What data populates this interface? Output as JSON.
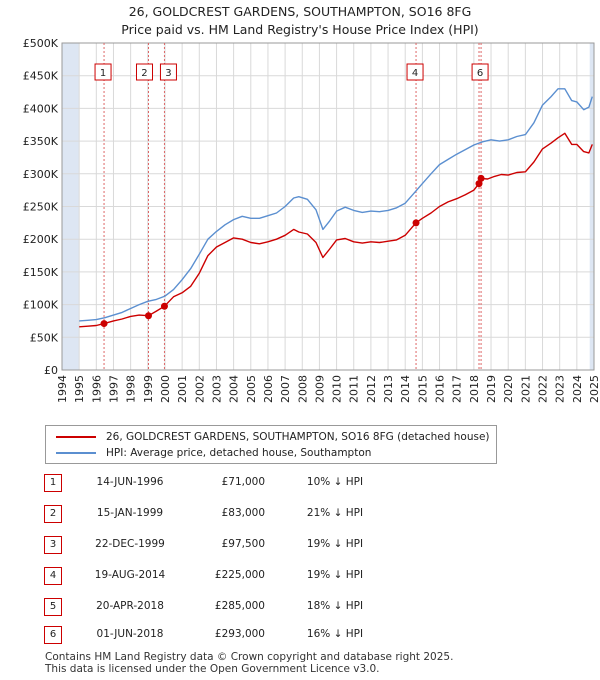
{
  "title_line1": "26, GOLDCREST GARDENS, SOUTHAMPTON, SO16 8FG",
  "title_line2": "Price paid vs. HM Land Registry's House Price Index (HPI)",
  "legend": {
    "property_label": "26, GOLDCREST GARDENS, SOUTHAMPTON, SO16 8FG (detached house)",
    "hpi_label": "HPI: Average price, detached house, Southampton"
  },
  "colors": {
    "property": "#cc0000",
    "hpi": "#5b8fd0",
    "shade": "#dde6f3",
    "marker_line": "#dd6666"
  },
  "transactions": [
    {
      "num": "1",
      "date": "14-JUN-1996",
      "price": "£71,000",
      "hpi": "10% ↓ HPI"
    },
    {
      "num": "2",
      "date": "15-JAN-1999",
      "price": "£83,000",
      "hpi": "21% ↓ HPI"
    },
    {
      "num": "3",
      "date": "22-DEC-1999",
      "price": "£97,500",
      "hpi": "19% ↓ HPI"
    },
    {
      "num": "4",
      "date": "19-AUG-2014",
      "price": "£225,000",
      "hpi": "19% ↓ HPI"
    },
    {
      "num": "5",
      "date": "20-APR-2018",
      "price": "£285,000",
      "hpi": "18% ↓ HPI"
    },
    {
      "num": "6",
      "date": "01-JUN-2018",
      "price": "£293,000",
      "hpi": "16% ↓ HPI"
    }
  ],
  "footer_line1": "Contains HM Land Registry data © Crown copyright and database right 2025.",
  "footer_line2": "This data is licensed under the Open Government Licence v3.0.",
  "chart_data": {
    "type": "line",
    "title": "26, GOLDCREST GARDENS, SOUTHAMPTON, SO16 8FG",
    "subtitle": "Price paid vs. HM Land Registry's House Price Index (HPI)",
    "xlim": [
      1994,
      2025
    ],
    "ylim": [
      0,
      500000
    ],
    "x_ticks": [
      1994,
      1995,
      1996,
      1997,
      1998,
      1999,
      2000,
      2001,
      2002,
      2003,
      2004,
      2005,
      2006,
      2007,
      2008,
      2009,
      2010,
      2011,
      2012,
      2013,
      2014,
      2015,
      2016,
      2017,
      2018,
      2019,
      2020,
      2021,
      2022,
      2023,
      2024,
      2025
    ],
    "y_ticks": [
      0,
      50000,
      100000,
      150000,
      200000,
      250000,
      300000,
      350000,
      400000,
      450000,
      500000
    ],
    "y_tick_labels": [
      "£0",
      "£50K",
      "£100K",
      "£150K",
      "£200K",
      "£250K",
      "£300K",
      "£350K",
      "£400K",
      "£450K",
      "£500K"
    ],
    "grid": true,
    "shaded_ranges": [
      [
        1994,
        1995
      ],
      [
        2024.75,
        2025
      ]
    ],
    "sale_markers": [
      {
        "label": "1",
        "x": 1996.45,
        "y": 71000
      },
      {
        "label": "2",
        "x": 1999.04,
        "y": 83000
      },
      {
        "label": "3",
        "x": 1999.97,
        "y": 97500
      },
      {
        "label": "4",
        "x": 2014.63,
        "y": 225000
      },
      {
        "label": "5",
        "x": 2018.3,
        "y": 285000
      },
      {
        "label": "6",
        "x": 2018.42,
        "y": 293000
      }
    ],
    "series": [
      {
        "name": "26, GOLDCREST GARDENS, SOUTHAMPTON, SO16 8FG (detached house)",
        "x": [
          1995.0,
          1995.5,
          1996.0,
          1996.45,
          1997.0,
          1997.5,
          1998.0,
          1998.5,
          1999.04,
          1999.5,
          1999.97,
          2000.5,
          2001.0,
          2001.5,
          2002.0,
          2002.5,
          2003.0,
          2003.5,
          2004.0,
          2004.5,
          2005.0,
          2005.5,
          2006.0,
          2006.5,
          2007.0,
          2007.5,
          2007.8,
          2008.3,
          2008.8,
          2009.2,
          2009.6,
          2010.0,
          2010.5,
          2011.0,
          2011.5,
          2012.0,
          2012.5,
          2013.0,
          2013.5,
          2014.0,
          2014.63,
          2015.0,
          2015.5,
          2016.0,
          2016.5,
          2017.0,
          2017.5,
          2018.0,
          2018.3,
          2018.42,
          2018.8,
          2019.2,
          2019.6,
          2020.0,
          2020.5,
          2021.0,
          2021.5,
          2022.0,
          2022.5,
          2022.9,
          2023.3,
          2023.7,
          2024.0,
          2024.4,
          2024.7,
          2024.9
        ],
        "y": [
          66000,
          67000,
          68000,
          71000,
          75000,
          78000,
          82000,
          84000,
          83000,
          90000,
          97500,
          112000,
          118000,
          128000,
          148000,
          175000,
          188000,
          195000,
          202000,
          200000,
          195000,
          193000,
          196000,
          200000,
          206000,
          215000,
          211000,
          208000,
          195000,
          172000,
          185000,
          199000,
          201000,
          196000,
          194000,
          196000,
          195000,
          197000,
          199000,
          206000,
          225000,
          232000,
          240000,
          250000,
          257000,
          262000,
          268000,
          275000,
          285000,
          293000,
          292000,
          296000,
          299000,
          298000,
          302000,
          303000,
          318000,
          338000,
          347000,
          355000,
          362000,
          345000,
          345000,
          334000,
          332000,
          345000
        ]
      },
      {
        "name": "HPI: Average price, detached house, Southampton",
        "x": [
          1995.0,
          1995.5,
          1996.0,
          1996.5,
          1997.0,
          1997.5,
          1998.0,
          1998.5,
          1999.0,
          1999.5,
          2000.0,
          2000.5,
          2001.0,
          2001.5,
          2002.0,
          2002.5,
          2003.0,
          2003.5,
          2004.0,
          2004.5,
          2005.0,
          2005.5,
          2006.0,
          2006.5,
          2007.0,
          2007.5,
          2007.8,
          2008.3,
          2008.8,
          2009.2,
          2009.6,
          2010.0,
          2010.5,
          2011.0,
          2011.5,
          2012.0,
          2012.5,
          2013.0,
          2013.5,
          2014.0,
          2014.5,
          2015.0,
          2015.5,
          2016.0,
          2016.5,
          2017.0,
          2017.5,
          2018.0,
          2018.5,
          2019.0,
          2019.5,
          2020.0,
          2020.5,
          2021.0,
          2021.5,
          2022.0,
          2022.5,
          2022.9,
          2023.3,
          2023.7,
          2024.0,
          2024.4,
          2024.7,
          2024.9
        ],
        "y": [
          75000,
          76000,
          77000,
          80000,
          84000,
          88000,
          94000,
          100000,
          105000,
          108000,
          113000,
          123000,
          138000,
          155000,
          177000,
          200000,
          212000,
          222000,
          230000,
          235000,
          232000,
          232000,
          236000,
          240000,
          250000,
          263000,
          265000,
          261000,
          245000,
          215000,
          228000,
          243000,
          249000,
          244000,
          241000,
          243000,
          242000,
          244000,
          248000,
          255000,
          270000,
          285000,
          300000,
          314000,
          322000,
          330000,
          337000,
          344000,
          349000,
          352000,
          350000,
          352000,
          357000,
          360000,
          378000,
          405000,
          418000,
          430000,
          430000,
          412000,
          410000,
          398000,
          402000,
          418000
        ]
      }
    ]
  }
}
